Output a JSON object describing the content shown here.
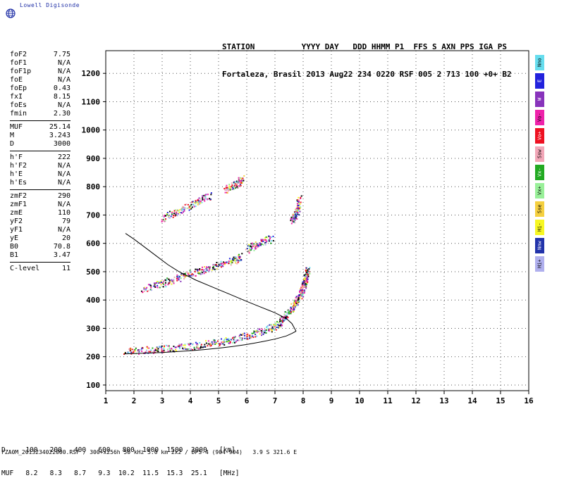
{
  "logo": {
    "brand": "Lowell Digisonde"
  },
  "header": {
    "line1": "STATION          YYYY DAY   DDD HHMM P1  FFS S AXN PPS IGA PS",
    "line2": "Fortaleza, Brasil 2013 Aug22 234 0220 RSF 005 2 713 100 +0+ B2"
  },
  "params": [
    [
      {
        "k": "foF2",
        "v": "7.75"
      },
      {
        "k": "foF1",
        "v": "N/A"
      },
      {
        "k": "foF1p",
        "v": "N/A"
      },
      {
        "k": "foE",
        "v": "N/A"
      },
      {
        "k": "foEp",
        "v": "0.43"
      },
      {
        "k": "fxI",
        "v": "8.15"
      },
      {
        "k": "foEs",
        "v": "N/A"
      },
      {
        "k": "fmin",
        "v": "2.30"
      }
    ],
    [
      {
        "k": "MUF",
        "v": "25.14"
      },
      {
        "k": "M",
        "v": "3.243"
      },
      {
        "k": "D",
        "v": "3000"
      }
    ],
    [
      {
        "k": "h'F",
        "v": "222"
      },
      {
        "k": "h'F2",
        "v": "N/A"
      },
      {
        "k": "h'E",
        "v": "N/A"
      },
      {
        "k": "h'Es",
        "v": "N/A"
      }
    ],
    [
      {
        "k": "zmF2",
        "v": "290"
      },
      {
        "k": "zmF1",
        "v": "N/A"
      },
      {
        "k": "zmE",
        "v": "110"
      },
      {
        "k": "yF2",
        "v": "79"
      },
      {
        "k": "yF1",
        "v": "N/A"
      },
      {
        "k": "yE",
        "v": "20"
      },
      {
        "k": "B0",
        "v": "70.8"
      },
      {
        "k": "B1",
        "v": "3.47"
      }
    ],
    [
      {
        "k": "C-level",
        "v": "11"
      }
    ]
  ],
  "legend": [
    {
      "label": "Nno",
      "color": "#66ddee"
    },
    {
      "label": "E",
      "color": "#2222dd"
    },
    {
      "label": "W",
      "color": "#8833bb"
    },
    {
      "label": "Vo-",
      "color": "#ee22aa"
    },
    {
      "label": "Vo+",
      "color": "#ee1122"
    },
    {
      "label": "Ssw",
      "color": "#f2a7b8"
    },
    {
      "label": "Vx-",
      "color": "#22aa22"
    },
    {
      "label": "Vx+",
      "color": "#99f099"
    },
    {
      "label": "Sse",
      "color": "#f5d040"
    },
    {
      "label": "Hi-",
      "color": "#f7f722"
    },
    {
      "label": "Nnw",
      "color": "#2233aa"
    },
    {
      "label": "Hi+",
      "color": "#b0b0ee"
    }
  ],
  "chart_data": {
    "type": "scatter",
    "xlim": [
      1,
      16
    ],
    "ylim": [
      80,
      1280
    ],
    "xticks": [
      1,
      2,
      3,
      4,
      5,
      6,
      7,
      8,
      9,
      10,
      11,
      12,
      13,
      14,
      15,
      16
    ],
    "yticks": [
      100,
      200,
      300,
      400,
      500,
      600,
      700,
      800,
      900,
      1000,
      1100,
      1200
    ],
    "grid": true,
    "profile_curve": {
      "x": [
        7.75,
        7.6,
        7.4,
        7.0,
        6.5,
        6.0,
        5.4,
        4.8,
        4.2,
        3.6,
        3.2,
        2.8,
        2.4,
        2.0,
        1.7
      ],
      "y": [
        290,
        317,
        335,
        355,
        375,
        395,
        420,
        445,
        470,
        500,
        525,
        555,
        585,
        615,
        635
      ]
    },
    "trace_curve": {
      "x": [
        1.65,
        2.0,
        2.5,
        3.0,
        3.5,
        4.0,
        4.5,
        5.0,
        5.5,
        6.0,
        6.5,
        7.0,
        7.4,
        7.6,
        7.75
      ],
      "y": [
        210,
        211,
        213,
        215,
        218,
        221,
        225,
        230,
        236,
        243,
        252,
        262,
        273,
        282,
        290
      ]
    },
    "echo_traces": [
      {
        "name": "O-F1",
        "x": [
          1.7,
          2.5,
          3.2,
          4.0,
          4.8,
          5.5,
          6.2,
          6.8,
          7.2
        ],
        "y": [
          222,
          225,
          230,
          238,
          250,
          262,
          280,
          300,
          320
        ]
      },
      {
        "name": "O-F2",
        "x": [
          7.2,
          7.5,
          7.7,
          7.9,
          8.0,
          8.05,
          8.1,
          8.15
        ],
        "y": [
          330,
          360,
          390,
          420,
          450,
          470,
          490,
          510
        ]
      },
      {
        "name": "2F",
        "x": [
          2.3,
          3.0,
          3.6,
          4.2,
          4.8,
          5.5,
          5.8
        ],
        "y": [
          440,
          460,
          480,
          500,
          520,
          540,
          555
        ]
      },
      {
        "name": "2F-b",
        "x": [
          6.0,
          6.4,
          6.9
        ],
        "y": [
          580,
          600,
          620
        ]
      },
      {
        "name": "3F",
        "x": [
          3.0,
          3.6,
          4.2,
          4.7
        ],
        "y": [
          690,
          715,
          745,
          770
        ]
      },
      {
        "name": "3F-b",
        "x": [
          5.2,
          5.6,
          5.85
        ],
        "y": [
          790,
          810,
          830
        ]
      },
      {
        "name": "X-trace",
        "x": [
          7.6,
          7.7,
          7.8,
          7.85
        ],
        "y": [
          680,
          700,
          720,
          760
        ]
      }
    ]
  },
  "bottom": {
    "line1": "D     100   200   400   600   800  1000  1500  3000   [km]",
    "line2": "MUF   8.2   8.3   8.7   9.3  10.2  11.5  15.3  25.1   [MHz]"
  },
  "footer": "FZA0M_2013234022000.RSF / 300+x256h 50 kHz 5.0 km 2x2 / DPS-4 (904-904)   3.9 S 321.6 E"
}
